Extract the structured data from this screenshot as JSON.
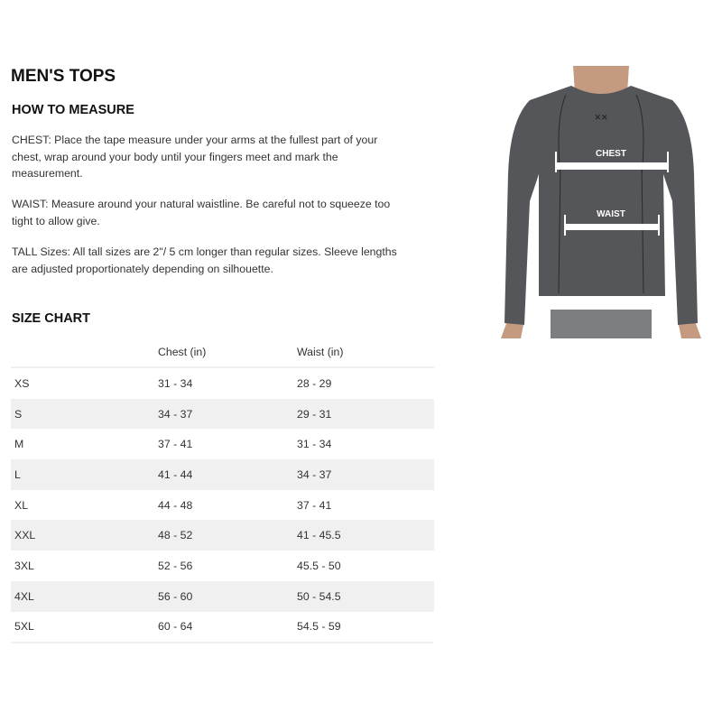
{
  "page": {
    "title": "MEN'S TOPS",
    "how_to_measure": {
      "heading": "HOW TO MEASURE",
      "paragraphs": [
        "CHEST: Place the tape measure under your arms at the fullest part of your chest, wrap around your body until your fingers meet and mark the measurement.",
        "WAIST: Measure around your natural waistline. Be careful not to squeeze too tight to allow give.",
        "TALL Sizes: All tall sizes are 2\"/ 5 cm longer than regular sizes. Sleeve lengths are adjusted proportionately depending on silhouette."
      ]
    },
    "size_chart": {
      "heading": "SIZE CHART",
      "columns": [
        "",
        "Chest (in)",
        "Waist (in)"
      ],
      "rows": [
        [
          "XS",
          "31 - 34",
          "28 - 29"
        ],
        [
          "S",
          "34 - 37",
          "29 - 31"
        ],
        [
          "M",
          "37 - 41",
          "31 - 34"
        ],
        [
          "L",
          "41 - 44",
          "34 - 37"
        ],
        [
          "XL",
          "44 - 48",
          "37 - 41"
        ],
        [
          "XXL",
          "48 - 52",
          "41 - 45.5"
        ],
        [
          "3XL",
          "52 - 56",
          "45.5 - 50"
        ],
        [
          "4XL",
          "56 - 60",
          "50 - 54.5"
        ],
        [
          "5XL",
          "60 - 64",
          "54.5 - 59"
        ]
      ]
    },
    "image": {
      "chest_label": "CHEST",
      "waist_label": "WAIST",
      "shirt_color": "#55565a"
    }
  }
}
